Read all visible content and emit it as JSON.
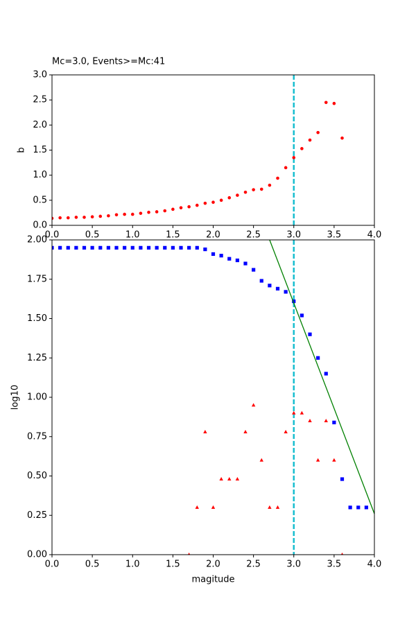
{
  "chart_data": [
    {
      "type": "scatter",
      "title": "Mc=3.0, Events>=Mc:41",
      "y_label": "b",
      "xlim": [
        0,
        4
      ],
      "ylim": [
        0,
        3
      ],
      "xticks": [
        {
          "value": 0,
          "label": "0.0"
        },
        {
          "value": 0.5,
          "label": "0.5"
        },
        {
          "value": 1,
          "label": "1.0"
        },
        {
          "value": 1.5,
          "label": "1.5"
        },
        {
          "value": 2,
          "label": "2.0"
        },
        {
          "value": 2.5,
          "label": "2.5"
        },
        {
          "value": 3,
          "label": "3.0"
        },
        {
          "value": 3.5,
          "label": "3.5"
        },
        {
          "value": 4,
          "label": "4.0"
        }
      ],
      "yticks": [
        {
          "value": 0,
          "label": "0.0"
        },
        {
          "value": 0.5,
          "label": "0.5"
        },
        {
          "value": 1,
          "label": "1.0"
        },
        {
          "value": 1.5,
          "label": "1.5"
        },
        {
          "value": 2,
          "label": "2.0"
        },
        {
          "value": 2.5,
          "label": "2.5"
        },
        {
          "value": 3,
          "label": "3.0"
        }
      ],
      "vline": {
        "x": 3.0,
        "color": "#17becf"
      },
      "series": [
        {
          "color": "#ff0000",
          "marker": "circle",
          "x": [
            0.0,
            0.1,
            0.2,
            0.3,
            0.4,
            0.5,
            0.6,
            0.7,
            0.8,
            0.9,
            1.0,
            1.1,
            1.2,
            1.3,
            1.4,
            1.5,
            1.6,
            1.7,
            1.8,
            1.9,
            2.0,
            2.1,
            2.2,
            2.3,
            2.4,
            2.5,
            2.6,
            2.7,
            2.8,
            2.9,
            3.0,
            3.1,
            3.2,
            3.3,
            3.4,
            3.5,
            3.6
          ],
          "values": [
            0.14,
            0.15,
            0.15,
            0.16,
            0.16,
            0.17,
            0.18,
            0.19,
            0.21,
            0.22,
            0.22,
            0.24,
            0.26,
            0.27,
            0.29,
            0.32,
            0.35,
            0.37,
            0.4,
            0.44,
            0.46,
            0.5,
            0.55,
            0.6,
            0.66,
            0.71,
            0.72,
            0.8,
            0.94,
            1.15,
            1.35,
            1.53,
            1.7,
            1.85,
            2.45,
            2.43,
            1.74
          ]
        }
      ]
    },
    {
      "type": "scatter",
      "x_label": "magitude",
      "y_label": "log10",
      "xlim": [
        0,
        4
      ],
      "ylim": [
        0,
        2
      ],
      "xticks": [
        {
          "value": 0,
          "label": "0.0"
        },
        {
          "value": 0.5,
          "label": "0.5"
        },
        {
          "value": 1,
          "label": "1.0"
        },
        {
          "value": 1.5,
          "label": "1.5"
        },
        {
          "value": 2,
          "label": "2.0"
        },
        {
          "value": 2.5,
          "label": "2.5"
        },
        {
          "value": 3,
          "label": "3.0"
        },
        {
          "value": 3.5,
          "label": "3.5"
        },
        {
          "value": 4,
          "label": "4.0"
        }
      ],
      "yticks": [
        {
          "value": 0,
          "label": "0.00"
        },
        {
          "value": 0.25,
          "label": "0.25"
        },
        {
          "value": 0.5,
          "label": "0.50"
        },
        {
          "value": 0.75,
          "label": "0.75"
        },
        {
          "value": 1,
          "label": "1.00"
        },
        {
          "value": 1.25,
          "label": "1.25"
        },
        {
          "value": 1.5,
          "label": "1.50"
        },
        {
          "value": 1.75,
          "label": "1.75"
        },
        {
          "value": 2,
          "label": "2.00"
        }
      ],
      "vline": {
        "x": 3.0,
        "color": "#17becf"
      },
      "series": [
        {
          "color": "#0000ff",
          "marker": "square",
          "x": [
            0.0,
            0.1,
            0.2,
            0.3,
            0.4,
            0.5,
            0.6,
            0.7,
            0.8,
            0.9,
            1.0,
            1.1,
            1.2,
            1.3,
            1.4,
            1.5,
            1.6,
            1.7,
            1.8,
            1.9,
            2.0,
            2.1,
            2.2,
            2.3,
            2.4,
            2.5,
            2.6,
            2.7,
            2.8,
            2.9,
            3.0,
            3.1,
            3.2,
            3.3,
            3.4,
            3.5,
            3.6,
            3.7,
            3.8,
            3.9
          ],
          "values": [
            1.95,
            1.95,
            1.95,
            1.95,
            1.95,
            1.95,
            1.95,
            1.95,
            1.95,
            1.95,
            1.95,
            1.95,
            1.95,
            1.95,
            1.95,
            1.95,
            1.95,
            1.95,
            1.95,
            1.94,
            1.91,
            1.9,
            1.88,
            1.87,
            1.85,
            1.81,
            1.74,
            1.71,
            1.69,
            1.67,
            1.61,
            1.52,
            1.4,
            1.25,
            1.15,
            0.84,
            0.48,
            0.3,
            0.3,
            0.3
          ]
        },
        {
          "color": "#ff0000",
          "marker": "triangle",
          "x": [
            1.7,
            1.8,
            1.9,
            2.0,
            2.1,
            2.2,
            2.3,
            2.4,
            2.5,
            2.6,
            2.7,
            2.8,
            2.9,
            3.0,
            3.1,
            3.2,
            3.3,
            3.4,
            3.5,
            3.6
          ],
          "values": [
            0.0,
            0.3,
            0.78,
            0.3,
            0.48,
            0.48,
            0.48,
            0.78,
            0.95,
            0.6,
            0.3,
            0.3,
            0.78,
            0.9,
            0.9,
            0.85,
            0.6,
            0.85,
            0.6,
            0.0
          ]
        },
        {
          "color": "#008000",
          "marker": "line",
          "x": [
            2.7,
            4.0
          ],
          "values": [
            2.0,
            0.26
          ]
        }
      ]
    }
  ]
}
